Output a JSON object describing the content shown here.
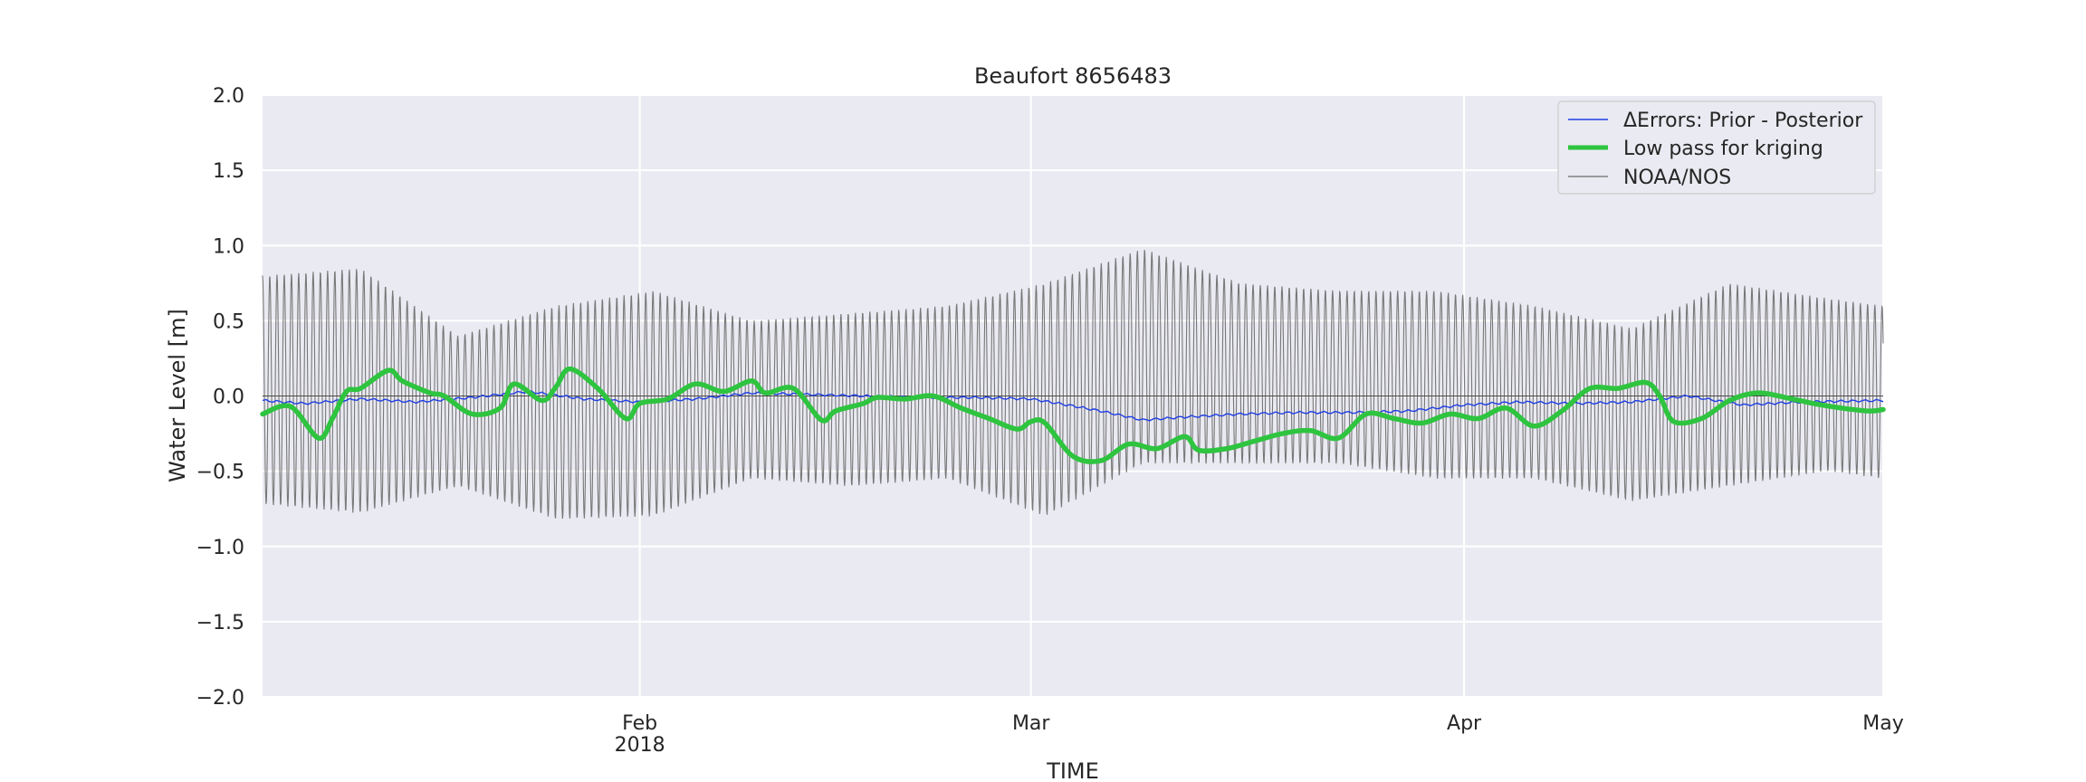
{
  "chart_data": {
    "type": "line",
    "title": "Beaufort  8656483",
    "xlabel": "TIME",
    "ylabel": "Water Level [m]",
    "ylim": [
      -2.0,
      2.0
    ],
    "xlim": [
      "2018-01-05",
      "2018-05-01"
    ],
    "grid": true,
    "legend_position": "upper right",
    "y_ticks": [
      {
        "value": 2.0,
        "label": "2.0"
      },
      {
        "value": 1.5,
        "label": "1.5"
      },
      {
        "value": 1.0,
        "label": "1.0"
      },
      {
        "value": 0.5,
        "label": "0.5"
      },
      {
        "value": 0.0,
        "label": "0.0"
      },
      {
        "value": -0.5,
        "label": "−0.5"
      },
      {
        "value": -1.0,
        "label": "−1.0"
      },
      {
        "value": -1.5,
        "label": "−1.5"
      },
      {
        "value": -2.0,
        "label": "−2.0"
      }
    ],
    "x_ticks": [
      {
        "date": "2018-02-01",
        "label": "Feb",
        "sublabel": "2018"
      },
      {
        "date": "2018-03-01",
        "label": "Mar",
        "sublabel": ""
      },
      {
        "date": "2018-04-01",
        "label": "Apr",
        "sublabel": ""
      },
      {
        "date": "2018-05-01",
        "label": "May",
        "sublabel": ""
      }
    ],
    "series": [
      {
        "name": "ΔErrors: Prior - Posterior",
        "color": "#1f3fe6",
        "style": "thin",
        "dates": [
          "2018-01-05",
          "2018-01-08",
          "2018-01-12",
          "2018-01-16",
          "2018-01-20",
          "2018-01-24",
          "2018-01-28",
          "2018-02-01",
          "2018-02-05",
          "2018-02-09",
          "2018-02-13",
          "2018-02-17",
          "2018-02-21",
          "2018-02-25",
          "2018-03-01",
          "2018-03-03",
          "2018-03-06",
          "2018-03-09",
          "2018-03-12",
          "2018-03-16",
          "2018-03-20",
          "2018-03-24",
          "2018-03-28",
          "2018-04-01",
          "2018-04-05",
          "2018-04-09",
          "2018-04-13",
          "2018-04-17",
          "2018-04-21",
          "2018-04-25",
          "2018-05-01"
        ],
        "values": [
          -0.03,
          -0.05,
          -0.02,
          -0.04,
          -0.01,
          0.03,
          -0.02,
          -0.04,
          -0.02,
          0.02,
          0.01,
          0.0,
          -0.01,
          -0.01,
          -0.02,
          -0.05,
          -0.1,
          -0.16,
          -0.14,
          -0.12,
          -0.11,
          -0.11,
          -0.1,
          -0.06,
          -0.04,
          -0.05,
          -0.04,
          0.0,
          -0.06,
          -0.04,
          -0.03
        ]
      },
      {
        "name": "Low pass for kriging",
        "color": "#2ec43f",
        "style": "thick",
        "dates": [
          "2018-01-05",
          "2018-01-07",
          "2018-01-09",
          "2018-01-10",
          "2018-01-11",
          "2018-01-12",
          "2018-01-14",
          "2018-01-15",
          "2018-01-17",
          "2018-01-18",
          "2018-01-20",
          "2018-01-22",
          "2018-01-23",
          "2018-01-25",
          "2018-01-26",
          "2018-01-27",
          "2018-01-29",
          "2018-01-31",
          "2018-02-01",
          "2018-02-03",
          "2018-02-05",
          "2018-02-07",
          "2018-02-09",
          "2018-02-10",
          "2018-02-12",
          "2018-02-14",
          "2018-02-15",
          "2018-02-17",
          "2018-02-18",
          "2018-02-20",
          "2018-02-22",
          "2018-02-24",
          "2018-02-26",
          "2018-02-28",
          "2018-03-01",
          "2018-03-02",
          "2018-03-04",
          "2018-03-06",
          "2018-03-08",
          "2018-03-10",
          "2018-03-12",
          "2018-03-13",
          "2018-03-15",
          "2018-03-17",
          "2018-03-19",
          "2018-03-21",
          "2018-03-23",
          "2018-03-25",
          "2018-03-27",
          "2018-03-29",
          "2018-03-31",
          "2018-04-02",
          "2018-04-04",
          "2018-04-06",
          "2018-04-08",
          "2018-04-10",
          "2018-04-12",
          "2018-04-14",
          "2018-04-15",
          "2018-04-16",
          "2018-04-18",
          "2018-04-20",
          "2018-04-22",
          "2018-04-24",
          "2018-04-26",
          "2018-04-28",
          "2018-04-30",
          "2018-05-01"
        ],
        "values": [
          -0.12,
          -0.07,
          -0.28,
          -0.15,
          0.03,
          0.05,
          0.17,
          0.1,
          0.02,
          0.0,
          -0.12,
          -0.08,
          0.08,
          -0.03,
          0.06,
          0.18,
          0.05,
          -0.15,
          -0.05,
          -0.02,
          0.08,
          0.03,
          0.1,
          0.02,
          0.05,
          -0.16,
          -0.1,
          -0.05,
          -0.01,
          -0.02,
          0.0,
          -0.08,
          -0.15,
          -0.22,
          -0.17,
          -0.18,
          -0.4,
          -0.43,
          -0.32,
          -0.35,
          -0.27,
          -0.36,
          -0.35,
          -0.3,
          -0.25,
          -0.23,
          -0.28,
          -0.12,
          -0.15,
          -0.18,
          -0.12,
          -0.15,
          -0.08,
          -0.2,
          -0.1,
          0.05,
          0.05,
          0.09,
          0.0,
          -0.17,
          -0.15,
          -0.03,
          0.02,
          -0.01,
          -0.05,
          -0.08,
          -0.1,
          -0.09
        ]
      },
      {
        "name": "NOAA/NOS",
        "color": "#6b6b6b",
        "style": "thin",
        "dates": [
          "2018-01-05",
          "2018-01-12",
          "2018-01-19",
          "2018-01-26",
          "2018-02-02",
          "2018-02-09",
          "2018-02-16",
          "2018-02-23",
          "2018-03-02",
          "2018-03-09",
          "2018-03-16",
          "2018-03-23",
          "2018-03-30",
          "2018-04-06",
          "2018-04-13",
          "2018-04-20",
          "2018-04-27",
          "2018-05-01"
        ],
        "high_envelope": [
          0.8,
          0.85,
          0.4,
          0.6,
          0.7,
          0.5,
          0.55,
          0.6,
          0.75,
          0.98,
          0.75,
          0.7,
          0.7,
          0.6,
          0.45,
          0.75,
          0.65,
          0.6
        ],
        "low_envelope": [
          -0.72,
          -0.78,
          -0.6,
          -0.82,
          -0.8,
          -0.55,
          -0.6,
          -0.55,
          -0.8,
          -0.45,
          -0.45,
          -0.45,
          -0.55,
          -0.55,
          -0.7,
          -0.6,
          -0.5,
          -0.55
        ]
      }
    ]
  }
}
